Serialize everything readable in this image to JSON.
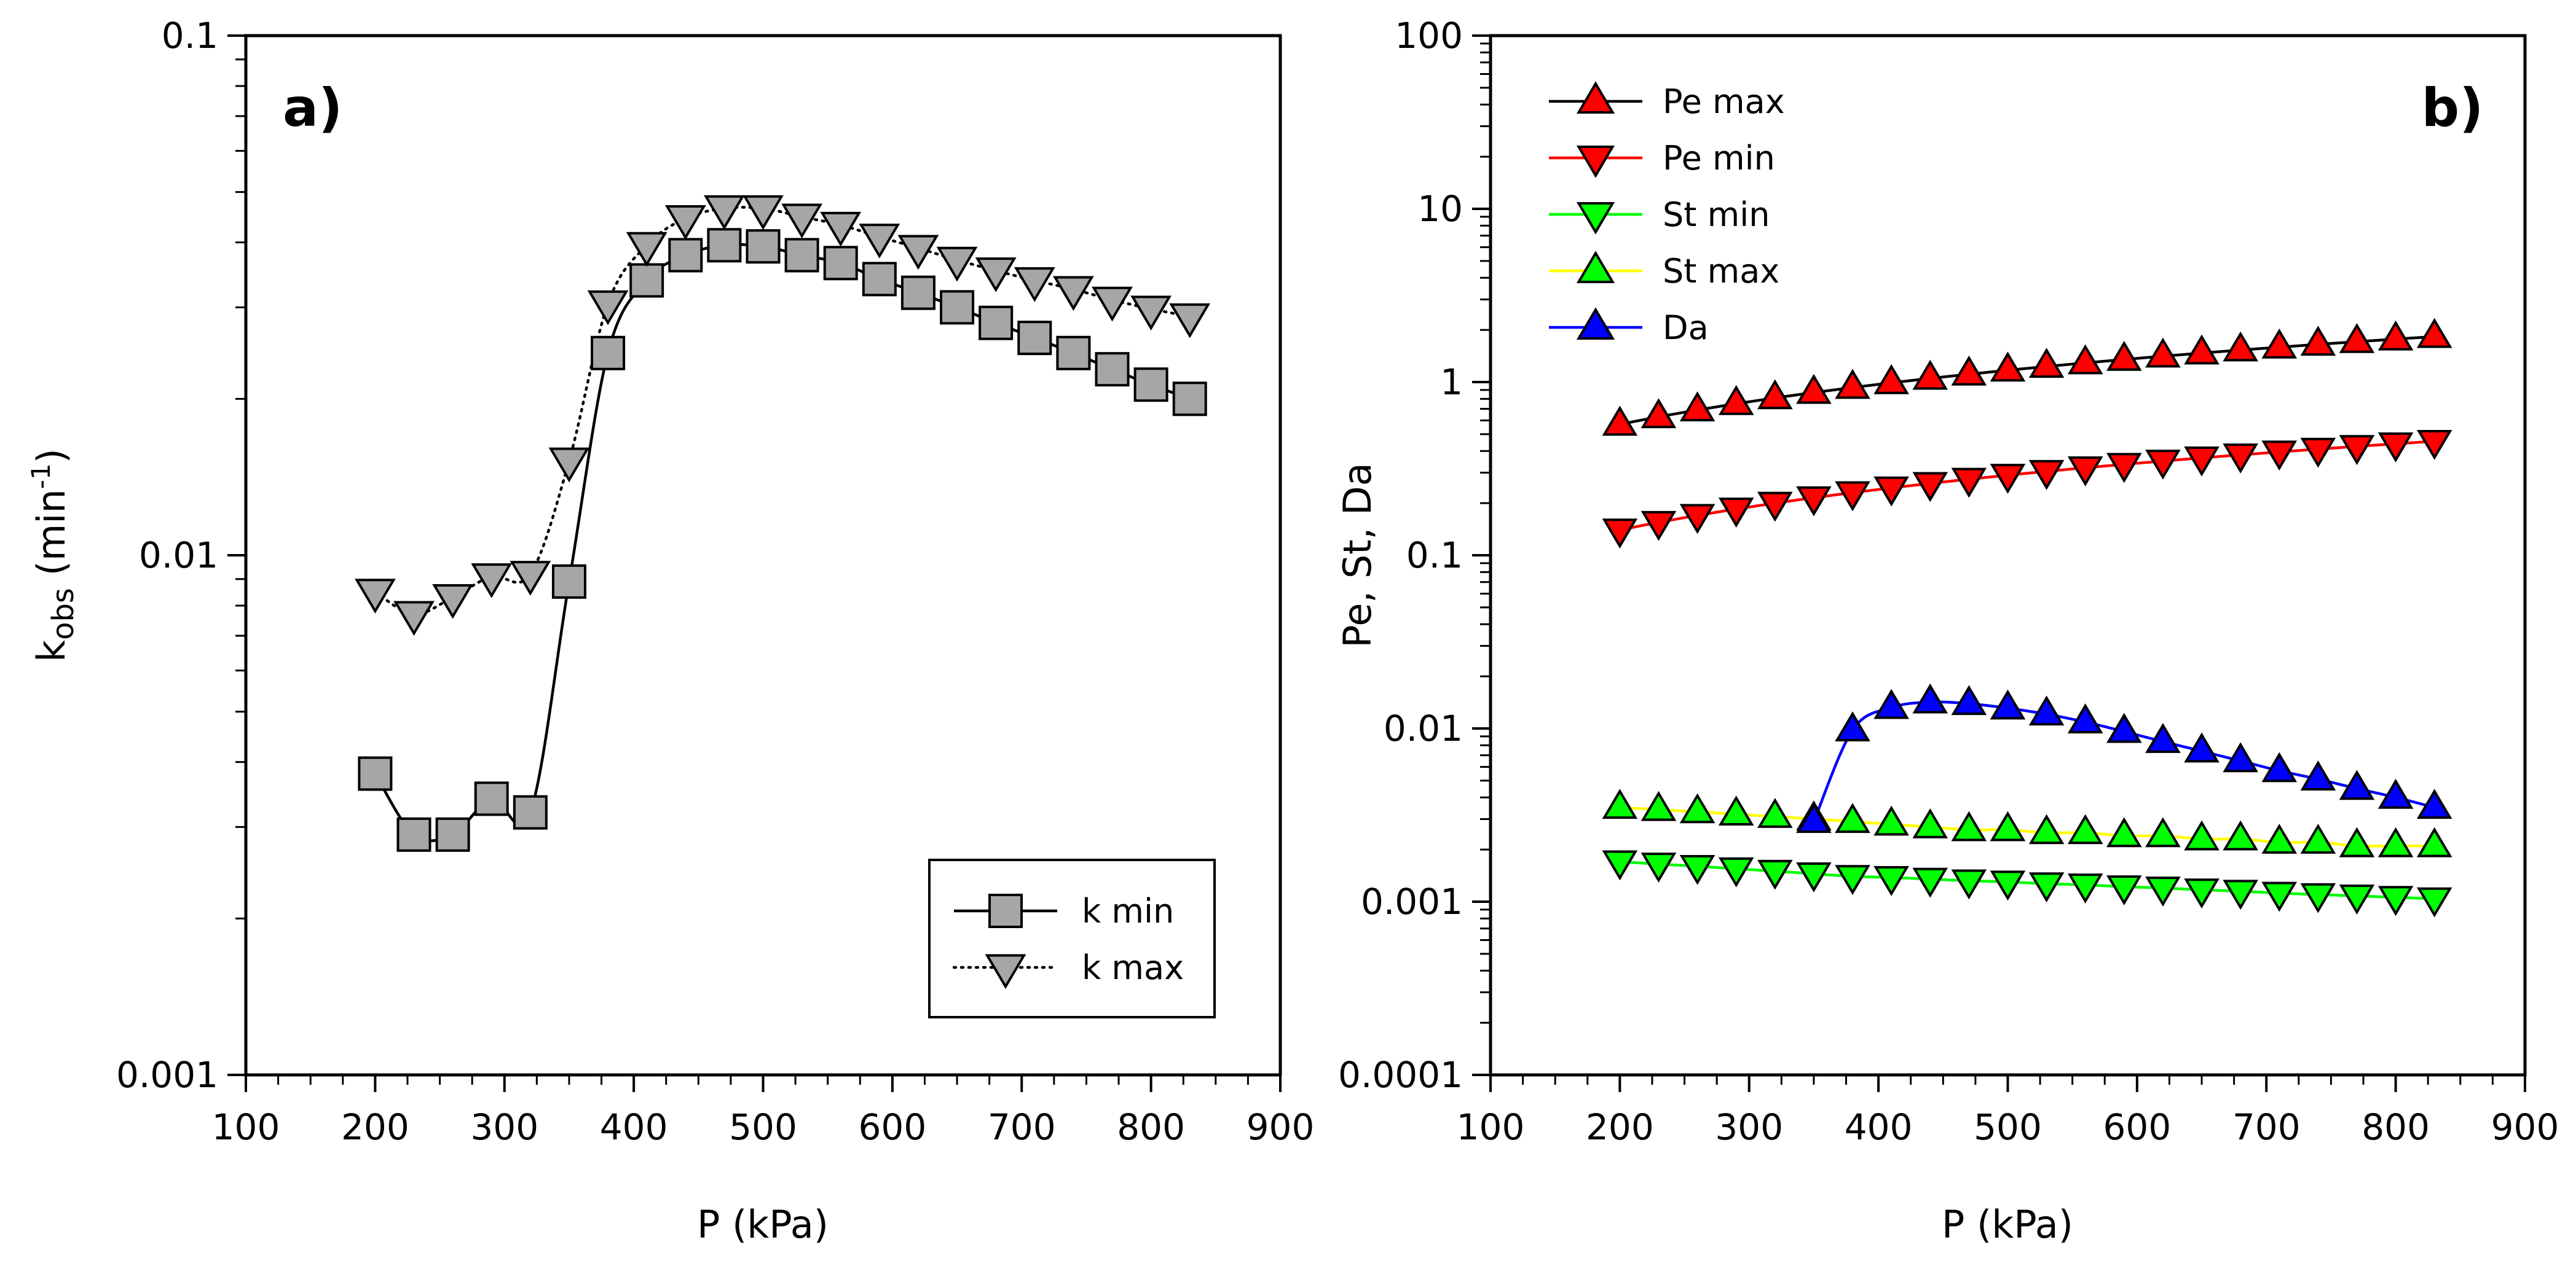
{
  "chart_data": [
    {
      "type": "line",
      "panel_label": "a)",
      "xlabel": "P (kPa)",
      "ylabel_main": "k",
      "ylabel_sub": "obs",
      "ylabel_unit": " (min",
      "ylabel_sup": "-1",
      "ylabel_close": ")",
      "xlim": [
        100,
        900
      ],
      "ylim": [
        0.001,
        0.1
      ],
      "yscale": "log",
      "grid": false,
      "x_ticks": [
        "100",
        "200",
        "300",
        "400",
        "500",
        "600",
        "700",
        "800",
        "900"
      ],
      "y_ticks": [
        "0.001",
        "0.01",
        "0.1"
      ],
      "legend_position": "bottom-right",
      "series": [
        {
          "name": "k min",
          "marker": "square",
          "line": "solid",
          "color": "#000000",
          "fill": "#a6a6a6",
          "x": [
            200,
            230,
            260,
            290,
            320,
            350,
            380,
            410,
            440,
            470,
            500,
            530,
            560,
            590,
            620,
            650,
            680,
            710,
            740,
            770,
            800,
            830
          ],
          "y": [
            0.0038,
            0.0029,
            0.0029,
            0.0034,
            0.0032,
            0.0089,
            0.0245,
            0.0338,
            0.0378,
            0.0395,
            0.0393,
            0.0378,
            0.0365,
            0.034,
            0.032,
            0.03,
            0.028,
            0.0262,
            0.0245,
            0.0228,
            0.0213,
            0.02
          ]
        },
        {
          "name": "k max",
          "marker": "triangle-down",
          "line": "dotted",
          "color": "#000000",
          "fill": "#a6a6a6",
          "x": [
            200,
            230,
            260,
            290,
            320,
            350,
            380,
            410,
            440,
            470,
            500,
            530,
            560,
            590,
            620,
            650,
            680,
            710,
            740,
            770,
            800,
            830
          ],
          "y": [
            0.0085,
            0.0077,
            0.0083,
            0.0091,
            0.0092,
            0.0152,
            0.0305,
            0.0395,
            0.0445,
            0.0465,
            0.0465,
            0.0448,
            0.0432,
            0.041,
            0.039,
            0.037,
            0.0353,
            0.0338,
            0.0325,
            0.031,
            0.0298,
            0.0288
          ]
        }
      ]
    },
    {
      "type": "line",
      "panel_label": "b)",
      "xlabel": "P (kPa)",
      "ylabel": "Pe, St, Da",
      "xlim": [
        100,
        900
      ],
      "ylim": [
        0.0001,
        100
      ],
      "yscale": "log",
      "grid": false,
      "x_ticks": [
        "100",
        "200",
        "300",
        "400",
        "500",
        "600",
        "700",
        "800",
        "900"
      ],
      "y_ticks": [
        "0.0001",
        "0.001",
        "0.01",
        "0.1",
        "1",
        "10",
        "100"
      ],
      "legend_position": "top-left",
      "series": [
        {
          "name": "Pe max",
          "marker": "triangle-up",
          "color": "#000000",
          "fill": "#ff0000",
          "x": [
            200,
            230,
            260,
            290,
            320,
            350,
            380,
            410,
            440,
            470,
            500,
            530,
            560,
            590,
            620,
            650,
            680,
            710,
            740,
            770,
            800,
            830
          ],
          "y": [
            0.57,
            0.63,
            0.69,
            0.75,
            0.81,
            0.87,
            0.93,
            0.99,
            1.05,
            1.11,
            1.17,
            1.23,
            1.29,
            1.35,
            1.41,
            1.47,
            1.53,
            1.59,
            1.65,
            1.71,
            1.77,
            1.83
          ]
        },
        {
          "name": "Pe min",
          "marker": "triangle-down",
          "color": "#ff0000",
          "fill": "#ff0000",
          "x": [
            200,
            230,
            260,
            290,
            320,
            350,
            380,
            410,
            440,
            470,
            500,
            530,
            560,
            590,
            620,
            650,
            680,
            710,
            740,
            770,
            800,
            830
          ],
          "y": [
            0.14,
            0.155,
            0.17,
            0.185,
            0.2,
            0.215,
            0.23,
            0.245,
            0.26,
            0.275,
            0.29,
            0.305,
            0.32,
            0.335,
            0.35,
            0.365,
            0.38,
            0.395,
            0.41,
            0.425,
            0.44,
            0.455
          ]
        },
        {
          "name": "St min",
          "marker": "triangle-down",
          "color": "#00ff00",
          "fill": "#00ff00",
          "x": [
            200,
            230,
            260,
            290,
            320,
            350,
            380,
            410,
            440,
            470,
            500,
            530,
            560,
            590,
            620,
            650,
            680,
            710,
            740,
            770,
            800,
            830
          ],
          "y": [
            0.0017,
            0.00165,
            0.0016,
            0.00155,
            0.0015,
            0.00145,
            0.0014,
            0.00138,
            0.00135,
            0.00132,
            0.0013,
            0.00127,
            0.00125,
            0.00122,
            0.0012,
            0.00117,
            0.00115,
            0.00112,
            0.0011,
            0.00108,
            0.00106,
            0.00104
          ]
        },
        {
          "name": "St max",
          "marker": "triangle-up",
          "color": "#ffff00",
          "fill": "#00ff00",
          "x": [
            200,
            230,
            260,
            290,
            320,
            350,
            380,
            410,
            440,
            470,
            500,
            530,
            560,
            590,
            620,
            650,
            680,
            710,
            740,
            770,
            800,
            830
          ],
          "y": [
            0.0035,
            0.0034,
            0.0033,
            0.0032,
            0.0031,
            0.003,
            0.0029,
            0.0028,
            0.0027,
            0.0026,
            0.0026,
            0.0025,
            0.0025,
            0.0024,
            0.0024,
            0.0023,
            0.0023,
            0.0022,
            0.0022,
            0.0021,
            0.0021,
            0.0021
          ]
        },
        {
          "name": "Da",
          "marker": "triangle-up",
          "color": "#0000ff",
          "fill": "#0000ff",
          "x": [
            350,
            380,
            410,
            440,
            470,
            500,
            530,
            560,
            590,
            620,
            650,
            680,
            710,
            740,
            770,
            800,
            830
          ],
          "y": [
            0.0029,
            0.0098,
            0.0132,
            0.0142,
            0.0139,
            0.0131,
            0.0121,
            0.0109,
            0.0096,
            0.0084,
            0.0074,
            0.0065,
            0.0057,
            0.0051,
            0.0045,
            0.004,
            0.0035
          ]
        }
      ]
    }
  ]
}
